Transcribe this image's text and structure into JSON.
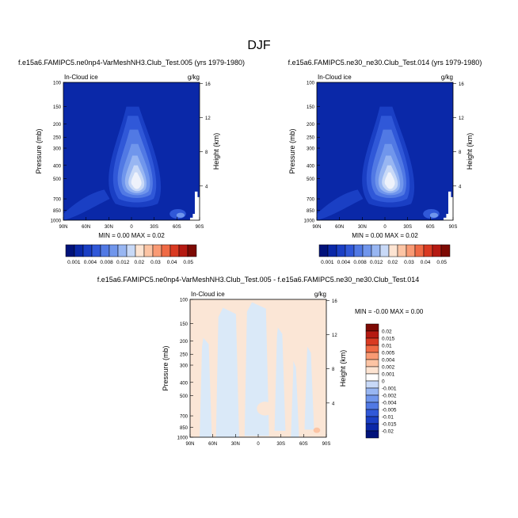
{
  "figure": {
    "title": "DJF"
  },
  "chart_data": [
    {
      "type": "heatmap",
      "title": "f.e15a6.FAMIPC5.ne0np4-VarMeshNH3.Club_Test.005 (yrs 1979-1980)",
      "left_label": "In-Cloud ice",
      "units": "g/kg",
      "xlabel": "",
      "ylabel": "Pressure (mb)",
      "y2label": "Height (km)",
      "xticks": [
        "90N",
        "60N",
        "30N",
        "0",
        "30S",
        "60S",
        "90S"
      ],
      "yticks": [
        "100",
        "150",
        "200",
        "250",
        "300",
        "400",
        "500",
        "700",
        "850",
        "1000"
      ],
      "y2ticks": [
        "16",
        "12",
        "8",
        "4"
      ],
      "min_label": "MIN =",
      "min_value": "0.00",
      "max_label": "MAX =",
      "max_value": "0.02",
      "levels": [
        "0.001",
        "0.004",
        "0.008",
        "0.012",
        "0.02",
        "0.03",
        "0.04",
        "0.05"
      ]
    },
    {
      "type": "heatmap",
      "title": "f.e15a6.FAMIPC5.ne30_ne30.Club_Test.014 (yrs 1979-1980)",
      "left_label": "In-Cloud ice",
      "units": "g/kg",
      "xlabel": "",
      "ylabel": "Pressure (mb)",
      "y2label": "Height (km)",
      "xticks": [
        "90N",
        "60N",
        "30N",
        "0",
        "30S",
        "60S",
        "90S"
      ],
      "yticks": [
        "100",
        "150",
        "200",
        "250",
        "300",
        "400",
        "500",
        "700",
        "850",
        "1000"
      ],
      "y2ticks": [
        "16",
        "12",
        "8",
        "4"
      ],
      "min_label": "MIN =",
      "min_value": "0.00",
      "max_label": "MAX =",
      "max_value": "0.02",
      "levels": [
        "0.001",
        "0.004",
        "0.008",
        "0.012",
        "0.02",
        "0.03",
        "0.04",
        "0.05"
      ]
    },
    {
      "type": "heatmap",
      "title": "f.e15a6.FAMIPC5.ne0np4-VarMeshNH3.Club_Test.005 - f.e15a6.FAMIPC5.ne30_ne30.Club_Test.014",
      "left_label": "In-Cloud ice",
      "units": "g/kg",
      "xlabel": "",
      "ylabel": "Pressure (mb)",
      "y2label": "Height (km)",
      "xticks": [
        "90N",
        "60N",
        "30N",
        "0",
        "30S",
        "60S",
        "90S"
      ],
      "yticks": [
        "100",
        "150",
        "200",
        "250",
        "300",
        "400",
        "500",
        "700",
        "850",
        "1000"
      ],
      "y2ticks": [
        "16",
        "12",
        "8",
        "4"
      ],
      "min_label": "MIN =",
      "min_value": "-0.00",
      "max_label": "MAX =",
      "max_value": "0.00",
      "levels": [
        "0.02",
        "0.015",
        "0.01",
        "0.005",
        "0.004",
        "0.002",
        "0.001",
        "0",
        "-0.001",
        "-0.002",
        "-0.004",
        "-0.005",
        "-0.01",
        "-0.015",
        "-0.02"
      ]
    }
  ],
  "colors": {
    "background_field": "#0a28a8",
    "seq": [
      "#01127a",
      "#0a28a8",
      "#1a3fc4",
      "#3058d8",
      "#5179e4",
      "#7096ec",
      "#98b6f2",
      "#c8d9f7",
      "#fde4d2",
      "#fcc4a4",
      "#f99a74",
      "#ef6a45",
      "#d93a22",
      "#b51a12",
      "#7d0a04"
    ],
    "diff_neg_small": "#dae9f8",
    "diff_pos_small": "#fbe6d6"
  }
}
